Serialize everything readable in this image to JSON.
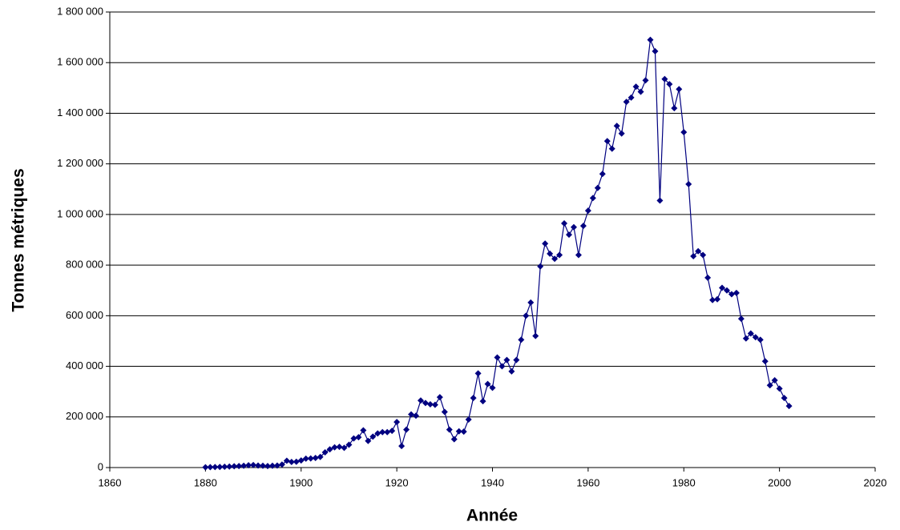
{
  "chart_data": {
    "type": "line",
    "x_label": "Année",
    "y_label": "Tonnes métriques",
    "color": "#000080",
    "marker": "diamond",
    "grid": true,
    "xlim": [
      1860,
      2020
    ],
    "xticks": [
      1860,
      1880,
      1900,
      1920,
      1940,
      1960,
      1980,
      2000,
      2020
    ],
    "ylim": [
      0,
      1800000
    ],
    "yticks": [
      0,
      {
        "value": 200000,
        "label": "200 000"
      },
      {
        "value": 400000,
        "label": "400 000"
      },
      {
        "value": 600000,
        "label": "600 000"
      },
      {
        "value": 800000,
        "label": "800 000"
      },
      {
        "value": 1000000,
        "label": "1 000 000"
      },
      {
        "value": 1200000,
        "label": "1 200 000"
      },
      {
        "value": 1400000,
        "label": "1 400 000"
      },
      {
        "value": 1600000,
        "label": "1 600 000"
      },
      {
        "value": 1800000,
        "label": "1 800 000"
      }
    ],
    "x": [
      1880,
      1881,
      1882,
      1883,
      1884,
      1885,
      1886,
      1887,
      1888,
      1889,
      1890,
      1891,
      1892,
      1893,
      1894,
      1895,
      1896,
      1897,
      1898,
      1899,
      1900,
      1901,
      1902,
      1903,
      1904,
      1905,
      1906,
      1907,
      1908,
      1909,
      1910,
      1911,
      1912,
      1913,
      1914,
      1915,
      1916,
      1917,
      1918,
      1919,
      1920,
      1921,
      1922,
      1923,
      1924,
      1925,
      1926,
      1927,
      1928,
      1929,
      1930,
      1931,
      1932,
      1933,
      1934,
      1935,
      1936,
      1937,
      1938,
      1939,
      1940,
      1941,
      1942,
      1943,
      1944,
      1945,
      1946,
      1947,
      1948,
      1949,
      1950,
      1951,
      1952,
      1953,
      1954,
      1955,
      1956,
      1957,
      1958,
      1959,
      1960,
      1961,
      1962,
      1963,
      1964,
      1965,
      1966,
      1967,
      1968,
      1969,
      1970,
      1971,
      1972,
      1973,
      1974,
      1975,
      1976,
      1977,
      1978,
      1979,
      1980,
      1981,
      1982,
      1983,
      1984,
      1985,
      1986,
      1987,
      1988,
      1989,
      1990,
      1991,
      1992,
      1993,
      1994,
      1995,
      1996,
      1997,
      1998,
      1999,
      2000,
      2001,
      2002
    ],
    "values": [
      1000,
      1500,
      2000,
      2500,
      3000,
      4000,
      5000,
      6000,
      7000,
      9000,
      10000,
      8000,
      7000,
      6000,
      7000,
      8000,
      12000,
      27000,
      22000,
      23000,
      28000,
      35000,
      36000,
      38000,
      42000,
      60000,
      72000,
      80000,
      82000,
      78000,
      90000,
      115000,
      120000,
      147000,
      105000,
      122000,
      135000,
      140000,
      140000,
      145000,
      180000,
      85000,
      150000,
      210000,
      205000,
      265000,
      255000,
      250000,
      248000,
      278000,
      220000,
      150000,
      112000,
      143000,
      142000,
      190000,
      275000,
      372000,
      262000,
      330000,
      315000,
      435000,
      400000,
      425000,
      380000,
      425000,
      505000,
      600000,
      652000,
      520000,
      795000,
      885000,
      845000,
      825000,
      840000,
      965000,
      920000,
      950000,
      840000,
      955000,
      1015000,
      1065000,
      1105000,
      1160000,
      1290000,
      1260000,
      1350000,
      1320000,
      1445000,
      1462000,
      1505000,
      1485000,
      1530000,
      1690000,
      1645000,
      1055000,
      1535000,
      1515000,
      1420000,
      1495000,
      1325000,
      1120000,
      835000,
      855000,
      840000,
      750000,
      662000,
      665000,
      710000,
      700000,
      685000,
      690000,
      588000,
      510000,
      530000,
      515000,
      505000,
      420000,
      325000,
      345000,
      312000,
      275000,
      243000
    ]
  }
}
